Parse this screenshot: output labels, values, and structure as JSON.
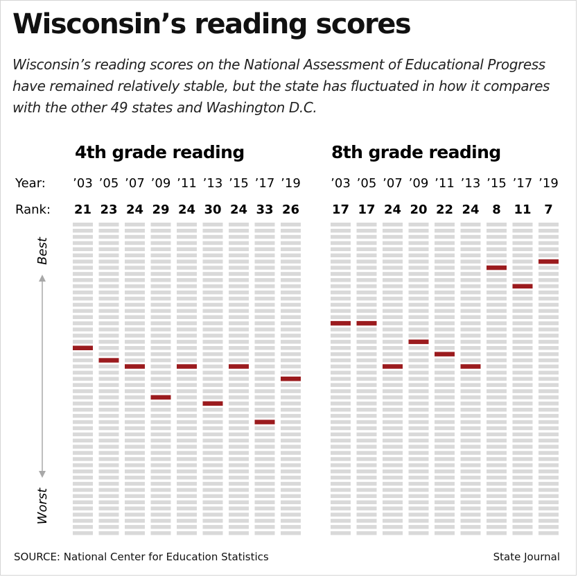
{
  "title": "Wisconsin’s reading scores",
  "subtitle": "Wisconsin’s reading scores on the National Assessment of Educational Progress have remained relatively stable, but the state has fluctuated in how it compares with the other 49 states and Washington D.C.",
  "labels": {
    "year": "Year:",
    "rank": "Rank:",
    "best": "Best",
    "worst": "Worst"
  },
  "source": "SOURCE: National Center for Education Statistics",
  "credit": "State Journal",
  "colors": {
    "marker": "#9b1b1e",
    "slot": "#d9d9d9",
    "arrow": "#a8a8a8"
  },
  "chart_data": [
    {
      "type": "rank-strip",
      "title": "4th grade reading",
      "x": [
        "’03",
        "’05",
        "’07",
        "’09",
        "’11",
        "’13",
        "’15",
        "’17",
        "’19"
      ],
      "values": [
        21,
        23,
        24,
        29,
        24,
        30,
        24,
        33,
        26
      ],
      "rank_range": [
        1,
        51
      ]
    },
    {
      "type": "rank-strip",
      "title": "8th grade reading",
      "x": [
        "’03",
        "’05",
        "’07",
        "’09",
        "’11",
        "’13",
        "’15",
        "’17",
        "’19"
      ],
      "values": [
        17,
        17,
        24,
        20,
        22,
        24,
        8,
        11,
        7
      ],
      "rank_range": [
        1,
        51
      ]
    }
  ]
}
